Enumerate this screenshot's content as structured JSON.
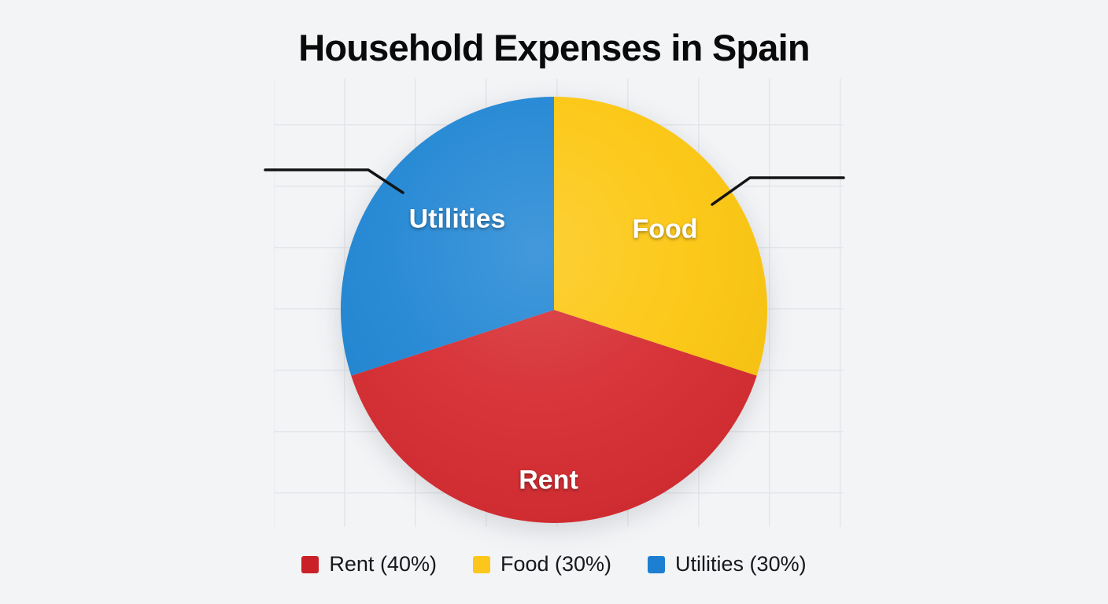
{
  "title": "Household Expenses in Spain",
  "chart_data": {
    "type": "pie",
    "title": "Household Expenses in Spain",
    "direction": "clockwise",
    "start_angle_deg": 0,
    "background_color": "#f3f4f6",
    "grid": true,
    "slices": [
      {
        "label": "Food",
        "value": 30,
        "unit": "%",
        "color": "#fcc60d"
      },
      {
        "label": "Rent",
        "value": 40,
        "unit": "%",
        "color": "#d5292e"
      },
      {
        "label": "Utilities",
        "value": 30,
        "unit": "%",
        "color": "#1d84d3"
      }
    ],
    "legend_position": "bottom",
    "legend": [
      {
        "label": "Rent (40%)",
        "color": "#c92127"
      },
      {
        "label": "Food (30%)",
        "color": "#fcc71a"
      },
      {
        "label": "Utilities (30%)",
        "color": "#1c7fd1"
      }
    ],
    "callouts": [
      {
        "target": "Utilities",
        "side": "left"
      },
      {
        "target": "Food",
        "side": "right"
      }
    ]
  }
}
